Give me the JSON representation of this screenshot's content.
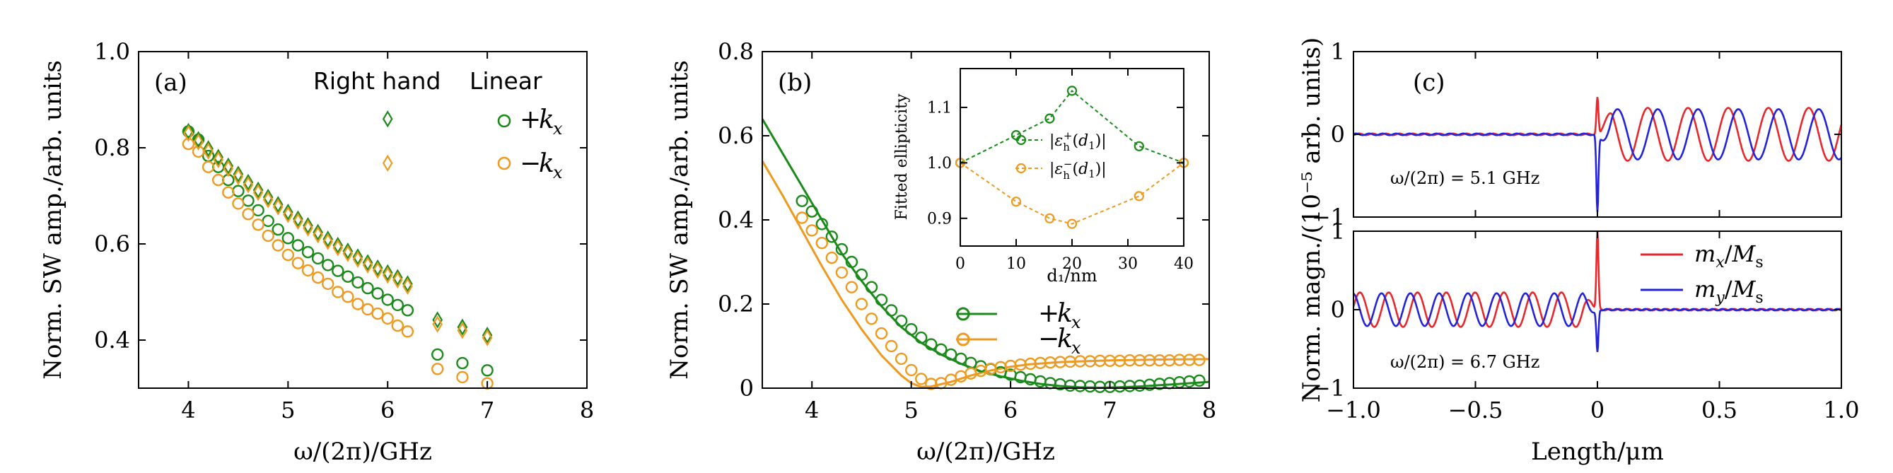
{
  "colors": {
    "green": "#1a8a1a",
    "orange": "#ee9a20",
    "red": "#e8262b",
    "blue": "#2222dd",
    "axis": "#000000"
  },
  "chart_data": [
    {
      "panel": "(a)",
      "type": "scatter",
      "xlabel": "ω/(2π)/GHz",
      "ylabel": "Norm. SW amp./arb. units",
      "xlim": [
        3.5,
        8
      ],
      "ylim": [
        0.3,
        1.0
      ],
      "xticks": [
        4,
        5,
        6,
        7,
        8
      ],
      "xtick_labels": [
        "4",
        "5",
        "6",
        "7",
        "8"
      ],
      "yticks": [
        0.4,
        0.6,
        0.8,
        1.0
      ],
      "ytick_labels": [
        "0.4",
        "0.6",
        "0.8",
        "1.0"
      ],
      "legend_headers": {
        "right": "Right hand",
        "linear": "Linear"
      },
      "legend": [
        {
          "name": "+k_x",
          "label": "+",
          "sub": "x",
          "color": "green"
        },
        {
          "name": "−k_x",
          "label": "−",
          "sub": "x",
          "color": "orange"
        }
      ],
      "series": [
        {
          "name": "+k_x linear",
          "marker": "circle",
          "color": "green",
          "x": [
            4.0,
            4.1,
            4.2,
            4.3,
            4.4,
            4.5,
            4.6,
            4.7,
            4.8,
            4.9,
            5.0,
            5.1,
            5.2,
            5.3,
            5.4,
            5.5,
            5.6,
            5.7,
            5.8,
            5.9,
            6.0,
            6.1,
            6.2,
            6.5,
            6.75,
            7.0
          ],
          "y": [
            0.834,
            0.817,
            0.783,
            0.76,
            0.733,
            0.71,
            0.69,
            0.67,
            0.648,
            0.63,
            0.612,
            0.597,
            0.583,
            0.57,
            0.556,
            0.544,
            0.532,
            0.52,
            0.508,
            0.497,
            0.484,
            0.473,
            0.462,
            0.37,
            0.352,
            0.337
          ]
        },
        {
          "name": "−k_x linear",
          "marker": "circle",
          "color": "orange",
          "x": [
            4.0,
            4.1,
            4.2,
            4.3,
            4.4,
            4.5,
            4.6,
            4.7,
            4.8,
            4.9,
            5.0,
            5.1,
            5.2,
            5.3,
            5.4,
            5.5,
            5.6,
            5.7,
            5.8,
            5.9,
            6.0,
            6.1,
            6.2,
            6.5,
            6.75,
            7.0
          ],
          "y": [
            0.808,
            0.792,
            0.76,
            0.733,
            0.707,
            0.684,
            0.662,
            0.64,
            0.617,
            0.597,
            0.577,
            0.56,
            0.545,
            0.53,
            0.517,
            0.5,
            0.49,
            0.475,
            0.464,
            0.455,
            0.445,
            0.43,
            0.418,
            0.34,
            0.323,
            0.31
          ]
        },
        {
          "name": "+k_x right hand",
          "marker": "diamond",
          "color": "green",
          "x": [
            4.0,
            4.1,
            4.2,
            4.3,
            4.4,
            4.5,
            4.6,
            4.7,
            4.8,
            4.9,
            5.0,
            5.1,
            5.2,
            5.3,
            5.4,
            5.5,
            5.6,
            5.7,
            5.8,
            5.9,
            6.0,
            6.1,
            6.2,
            6.5,
            6.75,
            7.0
          ],
          "y": [
            0.834,
            0.817,
            0.798,
            0.78,
            0.762,
            0.745,
            0.728,
            0.712,
            0.697,
            0.682,
            0.666,
            0.652,
            0.638,
            0.624,
            0.61,
            0.597,
            0.585,
            0.573,
            0.561,
            0.55,
            0.54,
            0.53,
            0.517,
            0.442,
            0.427,
            0.41
          ]
        },
        {
          "name": "−k_x right hand",
          "marker": "diamond",
          "color": "orange",
          "x": [
            4.0,
            4.1,
            4.2,
            4.3,
            4.4,
            4.5,
            4.6,
            4.7,
            4.8,
            4.9,
            5.0,
            5.1,
            5.2,
            5.3,
            5.4,
            5.5,
            5.6,
            5.7,
            5.8,
            5.9,
            6.0,
            6.1,
            6.2,
            6.5,
            6.75,
            7.0
          ],
          "y": [
            0.83,
            0.812,
            0.793,
            0.775,
            0.757,
            0.74,
            0.723,
            0.707,
            0.692,
            0.677,
            0.661,
            0.647,
            0.633,
            0.619,
            0.605,
            0.592,
            0.58,
            0.568,
            0.556,
            0.545,
            0.535,
            0.525,
            0.512,
            0.433,
            0.42,
            0.405
          ]
        }
      ],
      "legend_markers": {
        "diamond_green": [
          6.0,
          0.86
        ],
        "diamond_orange": [
          6.0,
          0.768
        ]
      }
    },
    {
      "panel": "(b)",
      "type": "line+scatter",
      "xlabel": "ω/(2π)/GHz",
      "ylabel": "Norm. SW amp./arb. units",
      "xlim": [
        3.5,
        8
      ],
      "ylim": [
        0,
        0.8
      ],
      "xticks": [
        4,
        5,
        6,
        7,
        8
      ],
      "xtick_labels": [
        "4",
        "5",
        "6",
        "7",
        "8"
      ],
      "yticks": [
        0,
        0.2,
        0.4,
        0.6,
        0.8
      ],
      "ytick_labels": [
        "0",
        "0.2",
        "0.4",
        "0.6",
        "0.8"
      ],
      "legend": [
        {
          "name": "+k_x",
          "label": "+",
          "sub": "x",
          "color": "green"
        },
        {
          "name": "−k_x",
          "label": "−",
          "sub": "x",
          "color": "orange"
        }
      ],
      "lines": [
        {
          "name": "+k_x fit",
          "color": "green",
          "x": [
            3.5,
            3.7,
            3.9,
            4.1,
            4.3,
            4.5,
            4.7,
            4.9,
            5.1,
            5.3,
            5.5,
            5.7,
            5.9,
            6.1,
            6.3,
            6.5,
            6.7,
            6.9,
            7.1,
            7.3,
            7.5,
            7.7,
            8.0
          ],
          "y": [
            0.64,
            0.56,
            0.48,
            0.4,
            0.32,
            0.255,
            0.195,
            0.145,
            0.108,
            0.08,
            0.058,
            0.04,
            0.028,
            0.018,
            0.01,
            0.005,
            0.002,
            0.001,
            0.002,
            0.004,
            0.007,
            0.01,
            0.015
          ]
        },
        {
          "name": "−k_x fit",
          "color": "orange",
          "x": [
            3.5,
            3.7,
            3.9,
            4.1,
            4.3,
            4.5,
            4.7,
            4.9,
            5.0,
            5.1,
            5.2,
            5.4,
            5.6,
            5.8,
            6.0,
            6.2,
            6.5,
            7.0,
            7.5,
            8.0
          ],
          "y": [
            0.54,
            0.46,
            0.375,
            0.29,
            0.21,
            0.14,
            0.078,
            0.03,
            0.012,
            0.003,
            0.004,
            0.015,
            0.03,
            0.042,
            0.051,
            0.057,
            0.062,
            0.066,
            0.068,
            0.069
          ]
        }
      ],
      "series": [
        {
          "name": "+k_x data",
          "color": "green",
          "x": [
            3.9,
            4.0,
            4.1,
            4.2,
            4.3,
            4.4,
            4.5,
            4.6,
            4.7,
            4.8,
            4.9,
            5.0,
            5.1,
            5.2,
            5.3,
            5.4,
            5.5,
            5.6,
            5.7,
            5.8,
            5.9,
            6.0,
            6.1,
            6.2,
            6.3,
            6.4,
            6.5,
            6.6,
            6.7,
            6.8,
            6.9,
            7.0,
            7.1,
            7.2,
            7.3,
            7.4,
            7.5,
            7.6,
            7.7,
            7.8,
            7.9
          ],
          "y": [
            0.445,
            0.42,
            0.39,
            0.36,
            0.33,
            0.3,
            0.27,
            0.24,
            0.21,
            0.185,
            0.16,
            0.14,
            0.12,
            0.104,
            0.092,
            0.08,
            0.07,
            0.06,
            0.052,
            0.045,
            0.038,
            0.032,
            0.026,
            0.021,
            0.016,
            0.012,
            0.009,
            0.006,
            0.005,
            0.004,
            0.003,
            0.003,
            0.004,
            0.005,
            0.006,
            0.008,
            0.01,
            0.012,
            0.014,
            0.016,
            0.018
          ]
        },
        {
          "name": "−k_x data",
          "color": "orange",
          "x": [
            3.9,
            4.0,
            4.1,
            4.2,
            4.3,
            4.4,
            4.5,
            4.6,
            4.7,
            4.8,
            4.9,
            5.0,
            5.1,
            5.2,
            5.3,
            5.4,
            5.5,
            5.6,
            5.7,
            5.8,
            5.9,
            6.0,
            6.1,
            6.2,
            6.3,
            6.4,
            6.5,
            6.6,
            6.7,
            6.8,
            6.9,
            7.0,
            7.1,
            7.2,
            7.3,
            7.4,
            7.5,
            7.6,
            7.7,
            7.8,
            7.9
          ],
          "y": [
            0.405,
            0.375,
            0.345,
            0.31,
            0.275,
            0.24,
            0.2,
            0.165,
            0.13,
            0.1,
            0.07,
            0.043,
            0.022,
            0.01,
            0.012,
            0.02,
            0.028,
            0.035,
            0.041,
            0.046,
            0.05,
            0.053,
            0.056,
            0.058,
            0.06,
            0.061,
            0.062,
            0.063,
            0.064,
            0.064,
            0.065,
            0.065,
            0.065,
            0.066,
            0.066,
            0.066,
            0.066,
            0.066,
            0.067,
            0.067,
            0.067
          ]
        }
      ]
    },
    {
      "panel": "(b) inset",
      "type": "line+scatter",
      "xlabel": "d₁/nm",
      "ylabel": "Fitted ellipticity",
      "xlim": [
        0,
        40
      ],
      "ylim": [
        0.85,
        1.17
      ],
      "xticks": [
        0,
        10,
        20,
        30,
        40
      ],
      "xtick_labels": [
        "0",
        "10",
        "20",
        "30",
        "40"
      ],
      "yticks": [
        0.9,
        1.0,
        1.1
      ],
      "ytick_labels": [
        "0.9",
        "1.0",
        "1.1"
      ],
      "legend": [
        {
          "name": "|ε_h^+(d_1)|",
          "sup": "+",
          "color": "green"
        },
        {
          "name": "|ε_h^−(d_1)|",
          "sup": "−",
          "color": "orange"
        }
      ],
      "series": [
        {
          "name": "|ε_h^+(d_1)|",
          "color": "green",
          "x": [
            0,
            10,
            16,
            20,
            32,
            40
          ],
          "y": [
            1.0,
            1.05,
            1.08,
            1.13,
            1.03,
            1.0
          ]
        },
        {
          "name": "|ε_h^−(d_1)|",
          "color": "orange",
          "x": [
            0,
            10,
            16,
            20,
            32,
            40
          ],
          "y": [
            1.0,
            0.93,
            0.9,
            0.89,
            0.94,
            1.0
          ]
        }
      ]
    },
    {
      "panel": "(c)",
      "type": "line",
      "xlabel": "Length/μm",
      "ylabel": "Norm. magn./(10⁻⁵ arb. units)",
      "xlim": [
        -1.0,
        1.0
      ],
      "xticks": [
        -1.0,
        -0.5,
        0,
        0.5,
        1.0
      ],
      "xtick_labels": [
        "−1.0",
        "−0.5",
        "0",
        "0.5",
        "1.0"
      ],
      "subplots": [
        {
          "annotation": "ω/(2π) = 5.1 GHz",
          "ylim": [
            -1,
            1
          ],
          "yticks": [
            -1,
            0,
            1
          ],
          "ytick_labels": [
            "−1",
            "0",
            "1"
          ],
          "wave_side": "right",
          "wavelength": 0.165,
          "amplitude": 0.32,
          "spike_mx": 0.45,
          "spike_my": -0.95
        },
        {
          "annotation": "ω/(2π) = 6.7 GHz",
          "ylim": [
            -1,
            1
          ],
          "yticks": [
            -1,
            0,
            1
          ],
          "ytick_labels": [
            "−1",
            "0",
            "1"
          ],
          "wave_side": "left",
          "wavelength": 0.118,
          "amplitude": 0.22,
          "spike_mx": 1.0,
          "spike_my": -0.55
        }
      ],
      "legend": [
        {
          "name": "m_x/M_s",
          "comp": "x",
          "color": "red"
        },
        {
          "name": "m_y/M_s",
          "comp": "y",
          "color": "blue"
        }
      ]
    }
  ]
}
